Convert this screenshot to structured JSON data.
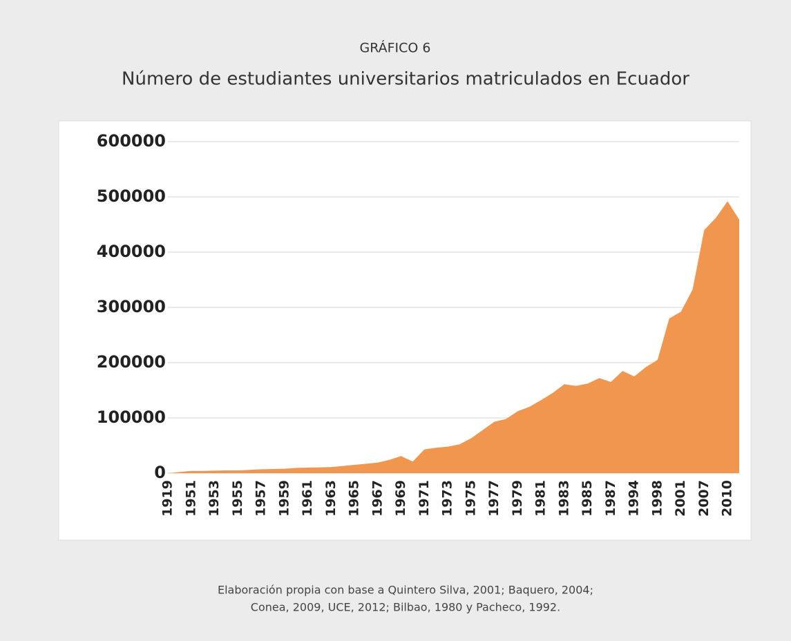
{
  "chart_data": {
    "type": "area",
    "title": "GRÁFICO 6",
    "subtitle": "Número de estudiantes universitarios matriculados  en Ecuador",
    "source": [
      "Elaboración propia con base a Quintero Silva, 2001; Baquero, 2004;",
      "Conea, 2009, UCE, 2012; Bilbao, 1980 y Pacheco, 1992."
    ],
    "categories": [
      "1919",
      null,
      "1951",
      null,
      "1953",
      null,
      "1955",
      null,
      "1957",
      null,
      "1959",
      null,
      "1961",
      null,
      "1963",
      null,
      "1965",
      null,
      "1967",
      null,
      "1969",
      null,
      "1971",
      null,
      "1973",
      null,
      "1975",
      null,
      "1977",
      null,
      "1979",
      null,
      "1981",
      null,
      "1983",
      null,
      "1985",
      null,
      "1987",
      null,
      "1994",
      null,
      "1998",
      null,
      "2001",
      null,
      "2007",
      null,
      "2010",
      null
    ],
    "values": [
      0,
      2000,
      4000,
      4000,
      4500,
      5000,
      5000,
      6000,
      7000,
      7500,
      8000,
      9500,
      10000,
      10500,
      11000,
      13000,
      15000,
      17000,
      19000,
      24000,
      31000,
      21000,
      43000,
      46000,
      48000,
      52000,
      63000,
      78000,
      93000,
      98000,
      112000,
      120000,
      132000,
      145000,
      161000,
      158000,
      162000,
      172000,
      165000,
      185000,
      175000,
      192000,
      205000,
      280000,
      292000,
      332000,
      440000,
      462000,
      492000,
      459000
    ],
    "color": "#f0964f",
    "ylim": [
      0,
      600000
    ],
    "yticks": [
      0,
      100000,
      200000,
      300000,
      400000,
      500000,
      600000
    ],
    "grid": true
  }
}
